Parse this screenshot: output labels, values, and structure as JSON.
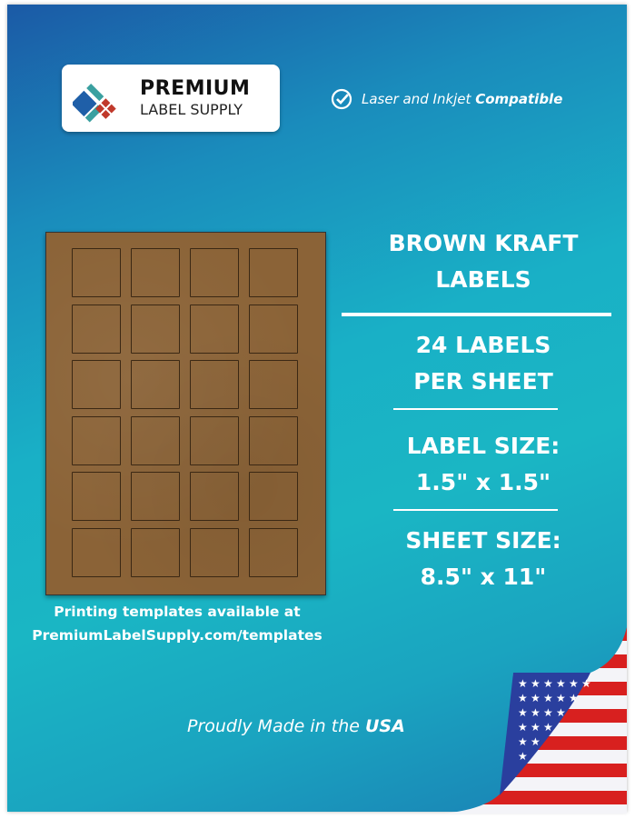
{
  "logo": {
    "line1": "PREMIUM",
    "line2": "LABEL SUPPLY",
    "colors": {
      "blue": "#1f5fa8",
      "teal": "#3aa0a0",
      "red": "#c0392b"
    }
  },
  "compat": {
    "icon": "check-circle-icon",
    "prefix": "Laser and Inkjet",
    "bold": "Compatible"
  },
  "product": {
    "line1": "BROWN KRAFT",
    "line2": "LABELS"
  },
  "count": {
    "line1": "24 LABELS",
    "line2": "PER SHEET"
  },
  "label_size": {
    "line1": "LABEL SIZE:",
    "line2": "1.5\" x 1.5\""
  },
  "sheet_size": {
    "line1": "SHEET SIZE:",
    "line2": "8.5\" x 11\""
  },
  "sheet": {
    "rows": 6,
    "cols": 4,
    "color": "#8b6337"
  },
  "templates": {
    "line1": "Printing templates available at",
    "line2": "PremiumLabelSupply.com/templates"
  },
  "usa": {
    "prefix": "Proudly Made in the",
    "bold": "USA"
  }
}
